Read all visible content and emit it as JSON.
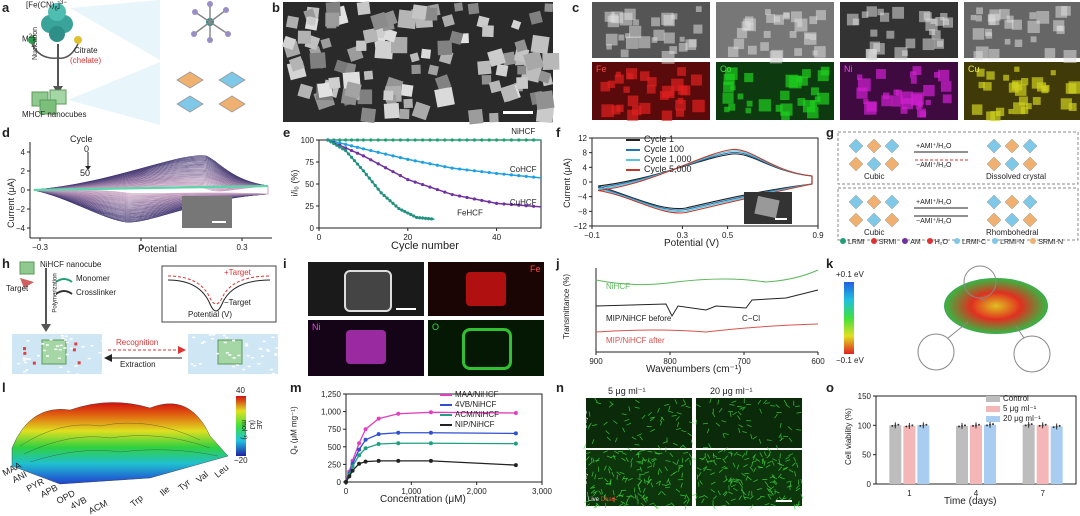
{
  "labels": {
    "a": "a",
    "b": "b",
    "c": "c",
    "d": "d",
    "e": "e",
    "f": "f",
    "g": "g",
    "h": "h",
    "i": "i",
    "j": "j",
    "k": "k",
    "l": "l",
    "m": "m",
    "n": "n",
    "o": "o"
  },
  "panel_a": {
    "formula": "[Fe(CN)",
    "formula_sub": "6",
    "formula_sup": "]",
    "formula_charge": "3−",
    "ion": "M",
    "ion_sup": "2+",
    "citrate": "Citrate",
    "chelate": "(chelate)",
    "nucleation": "Nucleation",
    "product": "MHCF nanocubes"
  },
  "panel_c": {
    "maps": [
      "Fe",
      "Co",
      "Ni",
      "Cu"
    ]
  },
  "panel_d": {
    "cycle_label": "Cycle",
    "cycle_start": "0",
    "cycle_end": "50",
    "xlabel": "Potential",
    "ylabel": "Current (μA)",
    "xticks": [
      "−0.3",
      "0",
      "0.3"
    ],
    "yticks": [
      "4",
      "2",
      "0",
      "−2",
      "−4"
    ]
  },
  "panel_e": {
    "xlabel": "Cycle number",
    "ylabel": "i/i₀ (%)",
    "chart_data": {
      "type": "line",
      "x_label": "Cycle number",
      "y_label": "i/i0 (%)",
      "xlim": [
        0,
        50
      ],
      "ylim": [
        0,
        100
      ],
      "xticks": [
        "0",
        "20",
        "40"
      ],
      "yticks": [
        "100",
        "75",
        "50",
        "25",
        "0"
      ],
      "series": [
        {
          "name": "NiHCF",
          "x": [
            2,
            10,
            20,
            30,
            40,
            50
          ],
          "y": [
            100,
            100,
            100,
            100,
            100,
            100
          ]
        },
        {
          "name": "CoHCF",
          "x": [
            2,
            10,
            20,
            30,
            40,
            50
          ],
          "y": [
            100,
            90,
            78,
            68,
            62,
            57
          ]
        },
        {
          "name": "CuHCF",
          "x": [
            2,
            10,
            20,
            30,
            40,
            50
          ],
          "y": [
            100,
            82,
            55,
            38,
            28,
            24
          ]
        },
        {
          "name": "FeHCF",
          "x": [
            2,
            6,
            10,
            14,
            18,
            22,
            26
          ],
          "y": [
            100,
            88,
            65,
            40,
            22,
            12,
            10
          ]
        }
      ]
    }
  },
  "panel_f": {
    "legend": [
      "Cycle 1",
      "Cycle 100",
      "Cycle 1,000",
      "Cycle 5,000"
    ],
    "legend_colors": [
      "#222222",
      "#1f77b4",
      "#5bc0de",
      "#c0392b"
    ],
    "xlabel": "Potential (V)",
    "ylabel": "Current (μA)",
    "xticks": [
      "−0.1",
      "0.3",
      "0.5",
      "0.9"
    ],
    "yticks": [
      "12",
      "8",
      "4",
      "0",
      "−4",
      "−8",
      "−12"
    ]
  },
  "panel_g": {
    "top_left": "Cubic",
    "top_right": "Dissolved crystal",
    "top_arrow_up": "+AMI⁺/H₂O",
    "top_arrow_down": "−AMI⁺/H₂O",
    "bot_left": "Cubic",
    "bot_right": "Rhombohedral",
    "bot_arrow_up": "+AMI⁺/H₂O",
    "bot_arrow_down": "−AMI⁺/H₂O",
    "legend": [
      "LRMI",
      "SRMI",
      "AM",
      "H₂O",
      "LRMI-C",
      "LRMI-N",
      "SRMI-N"
    ]
  },
  "panel_h": {
    "nanocube": "NiHCF nanocube",
    "target": "Target",
    "monomer": "Monomer",
    "crosslinker": "Crosslinker",
    "polymerization": "Polymerization",
    "recognition": "Recognition",
    "extraction": "Extraction",
    "plus_target": "+Target",
    "minus_target": "−Target",
    "potential": "Potential (V)"
  },
  "panel_i": {
    "maps": [
      "Fe",
      "Ni",
      "O"
    ]
  },
  "panel_j": {
    "series": [
      "NiHCF",
      "MIP/NiHCF before",
      "MIP/NiHCF after"
    ],
    "series_colors": [
      "#5cb85c",
      "#222222",
      "#d9534f"
    ],
    "annot": "C−Cl",
    "xlabel": "Wavenumbers (cm⁻¹)",
    "ylabel": "Transmittance (%)",
    "xticks": [
      "900",
      "800",
      "700",
      "600"
    ]
  },
  "panel_k": {
    "top": "+0.1 eV",
    "bottom": "−0.1 eV"
  },
  "panel_l": {
    "zlabel": "ΔE (kJ mol⁻¹)",
    "zmax": "40",
    "zmin": "−20",
    "molecules": [
      "MAA",
      "ANI",
      "PYR",
      "APB",
      "OPD",
      "4VB",
      "ACM",
      "Trp",
      "Ile",
      "Tyr",
      "Val",
      "Leu"
    ]
  },
  "panel_m": {
    "xlabel": "Concentration (μM)",
    "ylabel": "Qₑ (μM mg⁻¹)",
    "chart_data": {
      "type": "line",
      "x_label": "Concentration (μM)",
      "y_label": "Qe (μM mg−1)",
      "xlim": [
        0,
        3000
      ],
      "ylim": [
        0,
        1250
      ],
      "xticks": [
        "0",
        "1,000",
        "2,000",
        "3,000"
      ],
      "yticks": [
        "1,250",
        "1,000",
        "750",
        "500",
        "250",
        "0"
      ],
      "series": [
        {
          "name": "MAA/NiHCF",
          "color": "#e040c0",
          "x": [
            0,
            50,
            100,
            200,
            300,
            500,
            800,
            1300,
            2600
          ],
          "y": [
            0,
            150,
            300,
            550,
            750,
            900,
            970,
            990,
            980
          ]
        },
        {
          "name": "4VB/NiHCF",
          "color": "#3050d0",
          "x": [
            0,
            50,
            100,
            200,
            300,
            500,
            800,
            1300,
            2600
          ],
          "y": [
            0,
            120,
            260,
            460,
            600,
            680,
            700,
            700,
            690
          ]
        },
        {
          "name": "ACM/NiHCF",
          "color": "#20a080",
          "x": [
            0,
            50,
            100,
            200,
            300,
            500,
            800,
            1300,
            2600
          ],
          "y": [
            0,
            100,
            220,
            380,
            480,
            540,
            550,
            550,
            545
          ]
        },
        {
          "name": "NIP/NiHCF",
          "color": "#222222",
          "x": [
            0,
            50,
            100,
            200,
            300,
            500,
            800,
            1300,
            2600
          ],
          "y": [
            0,
            80,
            160,
            260,
            290,
            300,
            300,
            300,
            240
          ]
        }
      ]
    }
  },
  "panel_n": {
    "cols": [
      "5 μg ml⁻¹",
      "20 μg ml⁻¹"
    ],
    "rows": [
      "Day 1",
      "Day 7"
    ],
    "live": "Live",
    "dead": "Dead"
  },
  "panel_o": {
    "xlabel": "Time (days)",
    "ylabel": "Cell viability (%)",
    "chart_data": {
      "type": "bar",
      "categories": [
        "1",
        "4",
        "7"
      ],
      "ylim": [
        0,
        150
      ],
      "yticks": [
        "150",
        "100",
        "50",
        "0"
      ],
      "series": [
        {
          "name": "Control",
          "color": "#bdbdbd",
          "values": [
            100,
            99,
            101
          ]
        },
        {
          "name": "5 μg ml⁻¹",
          "color": "#f4b6b6",
          "values": [
            99,
            100,
            100
          ]
        },
        {
          "name": "20 μg ml⁻¹",
          "color": "#a9cdf0",
          "values": [
            100,
            101,
            98
          ]
        }
      ]
    }
  }
}
